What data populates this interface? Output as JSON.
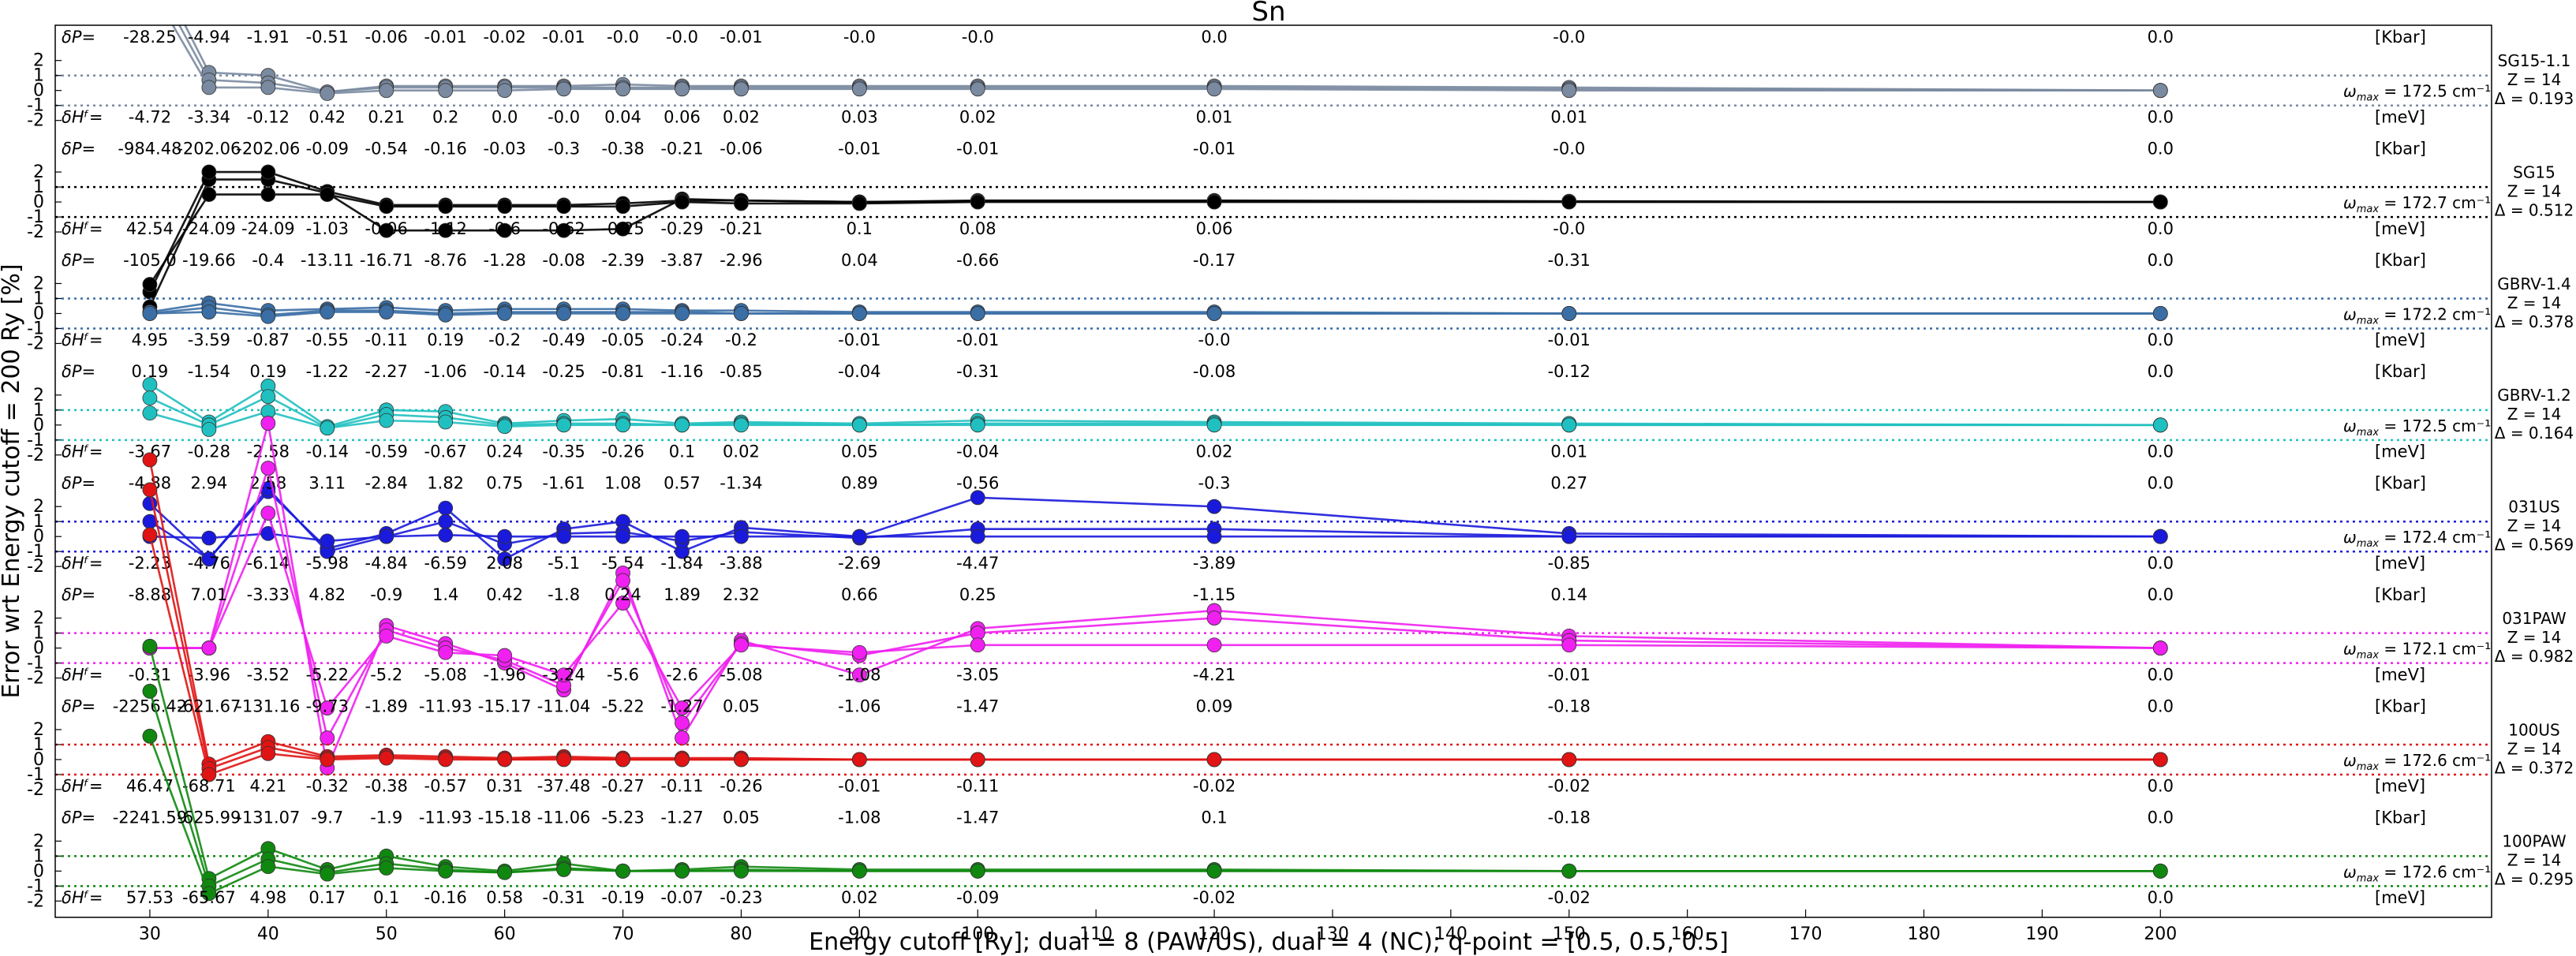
{
  "chart_data": {
    "type": "line",
    "title": "Sn",
    "xlabel": "Energy cutoff [Ry]; dual = 8 (PAW/US), dual = 4 (NC); q-point = [0.5, 0.5, 0.5]",
    "ylabel": "Error wrt Energy cutoff = 200 Ry [%]",
    "x": [
      30,
      35,
      40,
      45,
      50,
      55,
      60,
      65,
      70,
      75,
      80,
      90,
      100,
      120,
      150,
      200
    ],
    "x_ticks": [
      30,
      40,
      50,
      60,
      70,
      80,
      90,
      100,
      110,
      120,
      130,
      140,
      150,
      160,
      170,
      180,
      190,
      200
    ],
    "xlim": [
      22,
      228
    ],
    "band_y_ticks": [
      "2",
      "1",
      "0",
      "-1",
      "-2"
    ],
    "ylim_per_band": [
      -2.5,
      3.0
    ],
    "dp_symbol": "δP=",
    "dh_symbol": "δHᶠ=",
    "omega_symbol": "ω",
    "omega_sub": "max",
    "units": {
      "dp": "[Kbar]",
      "dh": "[meV]"
    },
    "bands": [
      {
        "name": "SG15-1.1",
        "z": "Z = 14",
        "delta": "Δ = 0.193",
        "omega_value": "= 172.5 cm⁻¹",
        "color": "#7a8aa0",
        "dp": [
          "-28.25",
          "-4.94",
          "-1.91",
          "-0.51",
          "-0.06",
          "-0.01",
          "-0.02",
          "-0.01",
          "-0.0",
          "-0.0",
          "-0.01",
          "-0.0",
          "-0.0",
          "0.0",
          "-0.0",
          "0.0"
        ],
        "dh": [
          "-4.72",
          "-3.34",
          "-0.12",
          "0.42",
          "0.21",
          "0.2",
          "0.0",
          "-0.0",
          "0.04",
          "0.06",
          "0.02",
          "0.03",
          "0.02",
          "0.01",
          "0.01",
          "0.0"
        ],
        "series": [
          {
            "values": [
              9,
              1.2,
              1.0,
              -0.1,
              0.3,
              0.3,
              0.3,
              0.3,
              0.4,
              0.3,
              0.3,
              0.3,
              0.3,
              0.3,
              0.2,
              0
            ]
          },
          {
            "values": [
              8,
              0.7,
              0.5,
              -0.1,
              0.2,
              0.2,
              0.2,
              0.2,
              0.2,
              0.2,
              0.2,
              0.2,
              0.2,
              0.2,
              0.1,
              0
            ]
          },
          {
            "values": [
              7,
              0.2,
              0.2,
              -0.2,
              0.0,
              0.0,
              0.0,
              0.1,
              0.1,
              0.1,
              0.1,
              0.1,
              0.1,
              0.1,
              0.0,
              0
            ]
          }
        ]
      },
      {
        "name": "SG15",
        "z": "Z = 14",
        "delta": "Δ = 0.512",
        "omega_value": "= 172.7 cm⁻¹",
        "color": "#000000",
        "dp": [
          "-984.48",
          "-202.06",
          "-202.06",
          "-0.09",
          "-0.54",
          "-0.16",
          "-0.03",
          "-0.3",
          "-0.38",
          "-0.21",
          "-0.06",
          "-0.01",
          "-0.01",
          "-0.01",
          "-0.0",
          "0.0"
        ],
        "dh": [
          "42.54",
          "-24.09",
          "-24.09",
          "-1.03",
          "-0.06",
          "-1.12",
          "-0.6",
          "-0.62",
          "-0.25",
          "-0.29",
          "-0.21",
          "0.1",
          "0.08",
          "0.06",
          "-0.0",
          "0.0"
        ],
        "series": [
          {
            "values": [
              -7,
              1.5,
              1.5,
              0.6,
              -1.9,
              -1.9,
              -1.9,
              -1.9,
              -1.8,
              0.2,
              0.1,
              0.0,
              0.1,
              0.1,
              0.05,
              0
            ]
          },
          {
            "values": [
              -6,
              2.0,
              2.0,
              0.7,
              -0.2,
              -0.2,
              -0.2,
              -0.2,
              -0.1,
              0.1,
              0.1,
              0.0,
              0.05,
              0.05,
              0.02,
              0
            ]
          },
          {
            "values": [
              -5.5,
              0.5,
              0.5,
              0.5,
              -0.3,
              -0.3,
              -0.3,
              -0.3,
              -0.3,
              0.0,
              -0.1,
              -0.1,
              0.0,
              0.0,
              0.0,
              0
            ]
          }
        ]
      },
      {
        "name": "GBRV-1.4",
        "z": "Z = 14",
        "delta": "Δ = 0.378",
        "omega_value": "= 172.2 cm⁻¹",
        "color": "#3a6ea5",
        "dp": [
          "-105.0",
          "-19.66",
          "-0.4",
          "-13.11",
          "-16.71",
          "-8.76",
          "-1.28",
          "-0.08",
          "-2.39",
          "-3.87",
          "-2.96",
          "0.04",
          "-0.66",
          "-0.17",
          "-0.31",
          "0.0"
        ],
        "dh": [
          "4.95",
          "-3.59",
          "-0.87",
          "-0.55",
          "-0.11",
          "0.19",
          "-0.2",
          "-0.49",
          "-0.05",
          "-0.24",
          "-0.2",
          "-0.01",
          "-0.01",
          "-0.0",
          "-0.01",
          "0.0"
        ],
        "series": [
          {
            "values": [
              0.1,
              0.7,
              0.2,
              0.3,
              0.4,
              0.2,
              0.3,
              0.3,
              0.3,
              0.2,
              0.2,
              0.1,
              0.1,
              0.1,
              0.0,
              0
            ]
          },
          {
            "values": [
              0.0,
              0.4,
              -0.1,
              0.2,
              0.2,
              0.0,
              0.1,
              0.1,
              0.1,
              0.1,
              0.0,
              0.0,
              0.0,
              0.0,
              0.0,
              0
            ]
          },
          {
            "values": [
              0.0,
              0.1,
              -0.2,
              0.1,
              0.1,
              -0.1,
              0.0,
              0.0,
              0.0,
              0.0,
              0.0,
              0.0,
              0.0,
              0.0,
              0.0,
              0
            ]
          }
        ]
      },
      {
        "name": "GBRV-1.2",
        "z": "Z = 14",
        "delta": "Δ = 0.164",
        "omega_value": "= 172.5 cm⁻¹",
        "color": "#20c0c0",
        "dp": [
          "0.19",
          "-1.54",
          "0.19",
          "-1.22",
          "-2.27",
          "-1.06",
          "-0.14",
          "-0.25",
          "-0.81",
          "-1.16",
          "-0.85",
          "-0.04",
          "-0.31",
          "-0.08",
          "-0.12",
          "0.0"
        ],
        "dh": [
          "-3.67",
          "-0.28",
          "-2.58",
          "-0.14",
          "-0.59",
          "-0.67",
          "0.24",
          "-0.35",
          "-0.26",
          "0.1",
          "0.02",
          "0.05",
          "-0.04",
          "0.02",
          "0.01",
          "0.0"
        ],
        "series": [
          {
            "values": [
              2.7,
              0.2,
              2.6,
              -0.1,
              1.0,
              0.9,
              0.1,
              0.3,
              0.4,
              0.1,
              0.2,
              0.1,
              0.3,
              0.2,
              0.1,
              0
            ]
          },
          {
            "values": [
              1.8,
              0.0,
              1.9,
              -0.2,
              0.7,
              0.5,
              0.0,
              0.1,
              0.1,
              0.0,
              0.1,
              0.0,
              0.1,
              0.1,
              0.0,
              0
            ]
          },
          {
            "values": [
              0.8,
              -0.3,
              0.9,
              -0.2,
              0.3,
              0.2,
              -0.1,
              0.0,
              0.0,
              0.0,
              0.0,
              0.0,
              0.0,
              0.0,
              0.0,
              0
            ]
          }
        ]
      },
      {
        "name": "031US",
        "z": "Z = 14",
        "delta": "Δ = 0.569",
        "omega_value": "= 172.4 cm⁻¹",
        "color": "#1a1adc",
        "dp": [
          "-4.88",
          "2.94",
          "2.58",
          "3.11",
          "-2.84",
          "1.82",
          "0.75",
          "-1.61",
          "1.08",
          "0.57",
          "-1.34",
          "0.89",
          "-0.56",
          "-0.3",
          "0.27",
          "0.0"
        ],
        "dh": [
          "-2.23",
          "-4.76",
          "-6.14",
          "-5.98",
          "-4.84",
          "-6.59",
          "2.08",
          "-5.1",
          "-5.54",
          "-1.84",
          "-3.88",
          "-2.69",
          "-4.47",
          "-3.89",
          "-0.85",
          "0.0"
        ],
        "series": [
          {
            "values": [
              2.2,
              -1.5,
              3.0,
              -0.8,
              0.2,
              1.9,
              -1.5,
              0.5,
              1.0,
              -1.0,
              0.6,
              0.0,
              2.6,
              2.0,
              0.2,
              0
            ]
          },
          {
            "values": [
              1.0,
              -1.5,
              3.2,
              -1.0,
              0.0,
              1.0,
              -0.5,
              0.2,
              0.3,
              -0.3,
              0.3,
              -0.1,
              0.5,
              0.5,
              0.0,
              0
            ]
          },
          {
            "values": [
              0.0,
              -0.1,
              0.2,
              -0.3,
              0.0,
              0.1,
              0.0,
              0.0,
              0.0,
              0.0,
              0.0,
              0.0,
              0.0,
              0.0,
              0.0,
              0
            ]
          }
        ]
      },
      {
        "name": "031PAW",
        "z": "Z = 14",
        "delta": "Δ = 0.982",
        "omega_value": "= 172.1 cm⁻¹",
        "color": "#f020f0",
        "dp": [
          "-8.88",
          "7.01",
          "-3.33",
          "4.82",
          "-0.9",
          "1.4",
          "0.42",
          "-1.8",
          "0.24",
          "1.89",
          "2.32",
          "0.66",
          "0.25",
          "-1.15",
          "0.14",
          "0.0"
        ],
        "dh": [
          "-0.31",
          "-3.96",
          "-3.52",
          "-5.22",
          "-5.2",
          "-5.08",
          "-1.96",
          "-3.24",
          "-5.6",
          "-2.6",
          "-5.08",
          "-1.08",
          "-3.05",
          "-4.21",
          "-0.01",
          "0.0"
        ],
        "series": [
          {
            "values": [
              0.0,
              0.0,
              15.0,
              -8.0,
              1.5,
              0.3,
              -1.0,
              -2.8,
              5.0,
              -6.0,
              0.5,
              -1.8,
              1.3,
              2.5,
              0.8,
              0
            ]
          },
          {
            "values": [
              0.0,
              0.0,
              12.0,
              -6.0,
              1.2,
              0.0,
              -0.8,
              -2.5,
              4.5,
              -5.0,
              0.3,
              -0.5,
              1.0,
              2.0,
              0.5,
              0
            ]
          },
          {
            "values": [
              0.0,
              0.0,
              9.0,
              -4.0,
              0.8,
              -0.3,
              -0.5,
              -1.8,
              3.0,
              -4.0,
              0.2,
              -0.3,
              0.2,
              0.2,
              0.2,
              0
            ]
          }
        ]
      },
      {
        "name": "100US",
        "z": "Z = 14",
        "delta": "Δ = 0.372",
        "omega_value": "= 172.6 cm⁻¹",
        "color": "#e01414",
        "dp": [
          "-2256.42",
          "-621.67",
          "-131.16",
          "-9.73",
          "-1.89",
          "-11.93",
          "-15.17",
          "-11.04",
          "-5.22",
          "-1.27",
          "0.05",
          "-1.06",
          "-1.47",
          "0.09",
          "-0.18",
          "0.0"
        ],
        "dh": [
          "46.47",
          "-68.71",
          "4.21",
          "-0.32",
          "-0.38",
          "-0.57",
          "0.31",
          "-37.48",
          "-0.27",
          "-0.11",
          "-0.26",
          "-0.01",
          "-0.11",
          "-0.02",
          "-0.02",
          "0.0"
        ],
        "series": [
          {
            "values": [
              20.0,
              -0.3,
              1.2,
              0.2,
              0.3,
              0.2,
              0.1,
              0.2,
              0.1,
              0.1,
              0.1,
              0.0,
              0.0,
              0.0,
              0.0,
              0
            ]
          },
          {
            "values": [
              18.0,
              -0.6,
              0.8,
              0.1,
              0.2,
              0.1,
              0.0,
              0.1,
              0.0,
              0.0,
              0.0,
              0.0,
              0.0,
              0.0,
              0.0,
              0
            ]
          },
          {
            "values": [
              15.0,
              -1.0,
              0.4,
              0.0,
              0.1,
              0.0,
              0.0,
              0.0,
              0.0,
              0.0,
              0.0,
              0.0,
              0.0,
              0.0,
              0.0,
              0
            ]
          }
        ]
      },
      {
        "name": "100PAW",
        "z": "Z = 14",
        "delta": "Δ = 0.295",
        "omega_value": "= 172.6 cm⁻¹",
        "color": "#108810",
        "dp": [
          "-2241.59",
          "-625.99",
          "-131.07",
          "-9.7",
          "-1.9",
          "-11.93",
          "-15.18",
          "-11.06",
          "-5.23",
          "-1.27",
          "0.05",
          "-1.08",
          "-1.47",
          "0.1",
          "-0.18",
          "0.0"
        ],
        "dh": [
          "57.53",
          "-65.67",
          "4.98",
          "0.17",
          "0.1",
          "-0.16",
          "0.58",
          "-0.31",
          "-0.19",
          "-0.07",
          "-0.23",
          "0.02",
          "-0.09",
          "-0.02",
          "-0.02",
          "0.0"
        ],
        "series": [
          {
            "values": [
              15.0,
              -0.5,
              1.5,
              0.1,
              1.0,
              0.3,
              0.0,
              0.5,
              0.0,
              0.1,
              0.3,
              0.1,
              0.1,
              0.1,
              0.0,
              0
            ]
          },
          {
            "values": [
              12.0,
              -1.0,
              0.8,
              -0.1,
              0.5,
              0.1,
              -0.1,
              0.2,
              0.0,
              0.0,
              0.1,
              0.0,
              0.0,
              0.0,
              0.0,
              0
            ]
          },
          {
            "values": [
              9.0,
              -1.5,
              0.3,
              -0.2,
              0.2,
              0.0,
              -0.1,
              0.1,
              0.0,
              0.0,
              0.0,
              0.0,
              0.0,
              0.0,
              0.0,
              0
            ]
          }
        ]
      }
    ]
  }
}
